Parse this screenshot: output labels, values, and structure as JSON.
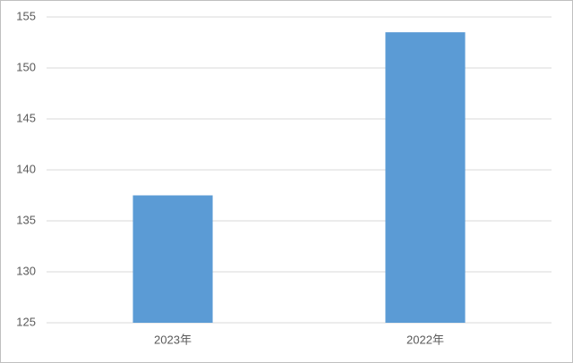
{
  "chart_data": {
    "type": "bar",
    "categories": [
      "2023年",
      "2022年"
    ],
    "values": [
      137.5,
      153.5
    ],
    "color": "#5b9bd5",
    "ylim": [
      125,
      155
    ],
    "yticks": [
      125,
      130,
      135,
      140,
      145,
      150,
      155
    ],
    "grid": true
  }
}
